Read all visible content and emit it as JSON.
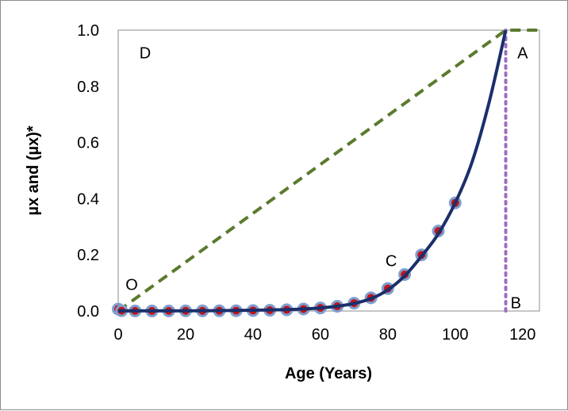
{
  "chart_data": {
    "type": "line",
    "xlabel": "Age (Years)",
    "ylabel": "µx and (µx)*",
    "xlim": [
      0,
      125
    ],
    "ylim": [
      0,
      1.0
    ],
    "x_ticks": [
      "0",
      "20",
      "40",
      "60",
      "80",
      "100",
      "120"
    ],
    "y_ticks": [
      "0.0",
      "0.2",
      "0.4",
      "0.6",
      "0.8",
      "1.0"
    ],
    "grid": false,
    "colors": {
      "curve": "#1b2f6b",
      "marker_fill": "#c0151b",
      "marker_edge": "#7f9fd0",
      "diagonal": "#5b7a2e",
      "vertical": "#9a6fc0"
    },
    "series": [
      {
        "style": "markers",
        "x": [
          0,
          1,
          5,
          10,
          15,
          20,
          25,
          30,
          35,
          40,
          45,
          50,
          55,
          60,
          65,
          70,
          75,
          80,
          85,
          90,
          95,
          100
        ],
        "y": [
          0.007,
          0.001,
          0.0003,
          0.0002,
          0.0004,
          0.0007,
          0.0008,
          0.0009,
          0.0012,
          0.0018,
          0.0029,
          0.0045,
          0.007,
          0.011,
          0.017,
          0.028,
          0.047,
          0.08,
          0.13,
          0.2,
          0.285,
          0.385
        ]
      },
      {
        "style": "solid-line",
        "x": [
          0,
          10,
          20,
          30,
          40,
          50,
          55,
          60,
          65,
          70,
          75,
          80,
          85,
          90,
          95,
          100,
          105,
          110,
          115
        ],
        "y": [
          0.0005,
          0.0006,
          0.0009,
          0.0015,
          0.0027,
          0.005,
          0.0074,
          0.011,
          0.017,
          0.027,
          0.044,
          0.075,
          0.125,
          0.195,
          0.275,
          0.385,
          0.53,
          0.74,
          1.0
        ]
      },
      {
        "style": "dashed-line",
        "x": [
          0,
          115,
          125
        ],
        "y": [
          0.0,
          1.0,
          1.0
        ]
      },
      {
        "style": "dotted-line",
        "x": [
          115,
          115
        ],
        "y": [
          0.0,
          1.0
        ]
      }
    ],
    "annotations": [
      {
        "text": "D",
        "x": 8,
        "y": 0.92
      },
      {
        "text": "A",
        "x": 120,
        "y": 0.92
      },
      {
        "text": "C",
        "x": 81,
        "y": 0.18
      },
      {
        "text": "O",
        "x": 4,
        "y": 0.095
      },
      {
        "text": "B",
        "x": 118,
        "y": 0.03
      }
    ]
  }
}
